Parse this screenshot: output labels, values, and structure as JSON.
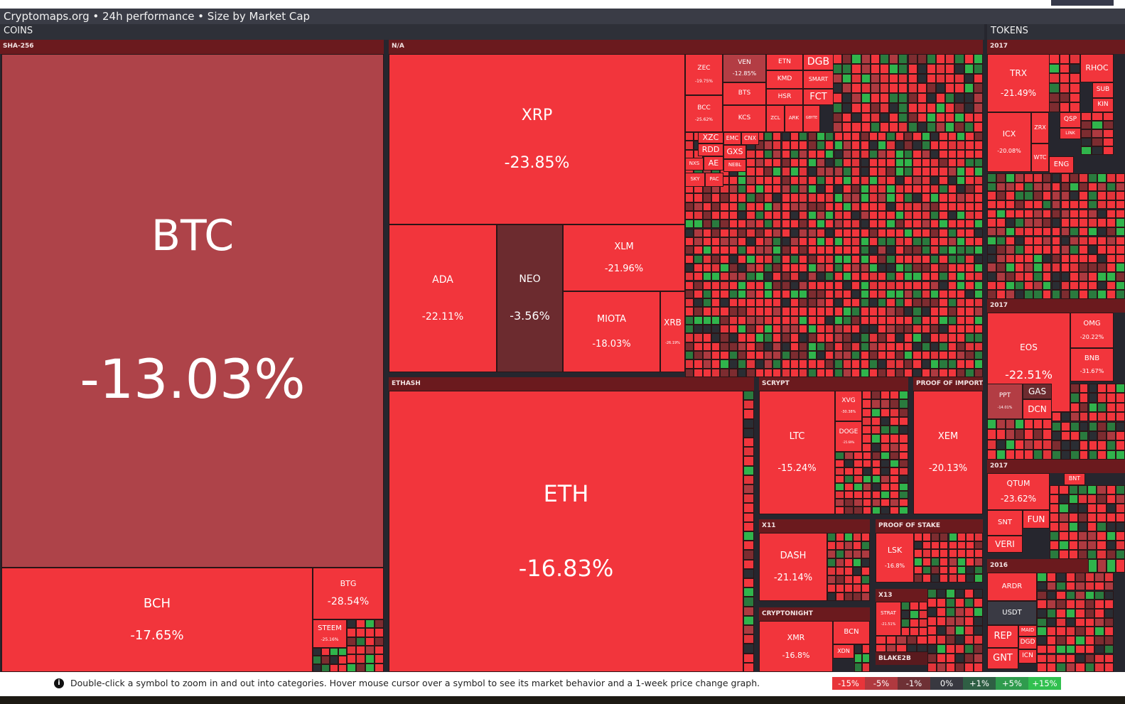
{
  "app": {
    "title": "Cryptomaps.org • 24h performance • Size by Market Cap"
  },
  "sections": {
    "coins": "COINS",
    "tokens": "TOKENS"
  },
  "groups": {
    "sha256": "SHA-256",
    "na": "N/A",
    "ethash": "ETHASH",
    "scrypt": "SCRYPT",
    "proof_importance": "PROOF OF IMPORTANCE",
    "x11": "X11",
    "proof_stake": "PROOF OF STAKE",
    "x13": "X13",
    "cryptonight": "CRYPTONIGHT",
    "blake2b": "BLAKE2B",
    "tok2017a": "2017",
    "tok2017b": "2017",
    "tok2017c": "2017",
    "tok2016": "2016"
  },
  "tiles": [
    {
      "sym": "BTC",
      "pct": "-13.03%",
      "color": "#ae4349"
    },
    {
      "sym": "BCH",
      "pct": "-17.65%",
      "color": "#f2353c"
    },
    {
      "sym": "BTG",
      "pct": "-28.54%",
      "color": "#f2353c"
    },
    {
      "sym": "STEEM",
      "pct": "-25.16%",
      "color": "#f2353c"
    },
    {
      "sym": "XRP",
      "pct": "-23.85%",
      "color": "#f2353c"
    },
    {
      "sym": "ADA",
      "pct": "-22.11%",
      "color": "#f2353c"
    },
    {
      "sym": "NEO",
      "pct": "-3.56%",
      "color": "#6c2b2f"
    },
    {
      "sym": "XLM",
      "pct": "-21.96%",
      "color": "#f2353c"
    },
    {
      "sym": "MIOTA",
      "pct": "-18.03%",
      "color": "#f2353c"
    },
    {
      "sym": "XRB",
      "pct": "-26.19%",
      "color": "#f2353c"
    },
    {
      "sym": "ZEC",
      "pct": "-19.75%",
      "color": "#f2353c"
    },
    {
      "sym": "VEN",
      "pct": "-12.85%",
      "color": "#b33d44"
    },
    {
      "sym": "ETN",
      "pct": "",
      "color": "#f2353c"
    },
    {
      "sym": "DGB",
      "pct": "",
      "color": "#f2353c"
    },
    {
      "sym": "KMD",
      "pct": "",
      "color": "#f2353c"
    },
    {
      "sym": "SMART",
      "pct": "",
      "color": "#f2353c"
    },
    {
      "sym": "BTS",
      "pct": "",
      "color": "#f2353c"
    },
    {
      "sym": "HSR",
      "pct": "",
      "color": "#f2353c"
    },
    {
      "sym": "FCT",
      "pct": "",
      "color": "#f2353c"
    },
    {
      "sym": "BCC",
      "pct": "-25.62%",
      "color": "#f2353c"
    },
    {
      "sym": "KCS",
      "pct": "",
      "color": "#f2353c"
    },
    {
      "sym": "ZCL",
      "pct": "",
      "color": "#f2353c"
    },
    {
      "sym": "ARK",
      "pct": "",
      "color": "#f2353c"
    },
    {
      "sym": "GBYTE",
      "pct": "",
      "color": "#f2353c"
    },
    {
      "sym": "XZC",
      "pct": "",
      "color": "#f2353c"
    },
    {
      "sym": "EMC",
      "pct": "",
      "color": "#f2353c"
    },
    {
      "sym": "CNX",
      "pct": "",
      "color": "#f2353c"
    },
    {
      "sym": "RDD",
      "pct": "",
      "color": "#f2353c"
    },
    {
      "sym": "GXS",
      "pct": "",
      "color": "#f2353c"
    },
    {
      "sym": "NXS",
      "pct": "",
      "color": "#f2353c"
    },
    {
      "sym": "AE",
      "pct": "",
      "color": "#f2353c"
    },
    {
      "sym": "NEBL",
      "pct": "",
      "color": "#f2353c"
    },
    {
      "sym": "SKY",
      "pct": "",
      "color": "#f2353c"
    },
    {
      "sym": "PAC",
      "pct": "",
      "color": "#f2353c"
    },
    {
      "sym": "ETH",
      "pct": "-16.83%",
      "color": "#f2353c"
    },
    {
      "sym": "LTC",
      "pct": "-15.24%",
      "color": "#f2353c"
    },
    {
      "sym": "XVG",
      "pct": "-30.38%",
      "color": "#f2353c"
    },
    {
      "sym": "DOGE",
      "pct": "-25.69%",
      "color": "#f2353c"
    },
    {
      "sym": "XEM",
      "pct": "-20.13%",
      "color": "#f2353c"
    },
    {
      "sym": "DASH",
      "pct": "-21.14%",
      "color": "#f2353c"
    },
    {
      "sym": "LSK",
      "pct": "-16.8%",
      "color": "#f2353c"
    },
    {
      "sym": "STRAT",
      "pct": "-21.51%",
      "color": "#f2353c"
    },
    {
      "sym": "XMR",
      "pct": "-16.8%",
      "color": "#f2353c"
    },
    {
      "sym": "BCN",
      "pct": "",
      "color": "#f2353c"
    },
    {
      "sym": "XDN",
      "pct": "",
      "color": "#f2353c"
    },
    {
      "sym": "TRX",
      "pct": "-21.49%",
      "color": "#f2353c"
    },
    {
      "sym": "RHOC",
      "pct": "",
      "color": "#f2353c"
    },
    {
      "sym": "SUB",
      "pct": "",
      "color": "#f2353c"
    },
    {
      "sym": "KIN",
      "pct": "",
      "color": "#f2353c"
    },
    {
      "sym": "ICX",
      "pct": "-20.08%",
      "color": "#f2353c"
    },
    {
      "sym": "ZRX",
      "pct": "",
      "color": "#f2353c"
    },
    {
      "sym": "QSP",
      "pct": "",
      "color": "#f2353c"
    },
    {
      "sym": "LINK",
      "pct": "",
      "color": "#f2353c"
    },
    {
      "sym": "WTC",
      "pct": "",
      "color": "#f2353c"
    },
    {
      "sym": "ENG",
      "pct": "",
      "color": "#f2353c"
    },
    {
      "sym": "EOS",
      "pct": "-22.51%",
      "color": "#f2353c"
    },
    {
      "sym": "OMG",
      "pct": "-20.22%",
      "color": "#f2353c"
    },
    {
      "sym": "BNB",
      "pct": "-31.67%",
      "color": "#f2353c"
    },
    {
      "sym": "PPT",
      "pct": "-14.01%",
      "color": "#b33d44"
    },
    {
      "sym": "GAS",
      "pct": "",
      "color": "#6c2b2f"
    },
    {
      "sym": "DCN",
      "pct": "",
      "color": "#f2353c"
    },
    {
      "sym": "QTUM",
      "pct": "-23.62%",
      "color": "#f2353c"
    },
    {
      "sym": "BNT",
      "pct": "",
      "color": "#f2353c"
    },
    {
      "sym": "SNT",
      "pct": "",
      "color": "#f2353c"
    },
    {
      "sym": "FUN",
      "pct": "",
      "color": "#f2353c"
    },
    {
      "sym": "VERI",
      "pct": "",
      "color": "#f2353c"
    },
    {
      "sym": "ARDR",
      "pct": "",
      "color": "#f2353c"
    },
    {
      "sym": "USDT",
      "pct": "",
      "color": "#3a3a44"
    },
    {
      "sym": "REP",
      "pct": "",
      "color": "#f2353c"
    },
    {
      "sym": "MAID",
      "pct": "",
      "color": "#f2353c"
    },
    {
      "sym": "DGD",
      "pct": "",
      "color": "#f2353c"
    },
    {
      "sym": "GNT",
      "pct": "",
      "color": "#f2353c"
    },
    {
      "sym": "ICN",
      "pct": "",
      "color": "#f2353c"
    }
  ],
  "footer": {
    "info_icon": "i",
    "hint": "Double-click a symbol to zoom in and out into categories. Hover mouse cursor over a symbol to see its market behavior and a 1-week price change graph."
  },
  "legend": [
    {
      "label": "-15%",
      "color": "#e8353a"
    },
    {
      "label": "-5%",
      "color": "#b0393f"
    },
    {
      "label": "-1%",
      "color": "#6e3035"
    },
    {
      "label": "0%",
      "color": "#383840"
    },
    {
      "label": "+1%",
      "color": "#2f5f44"
    },
    {
      "label": "+5%",
      "color": "#2f9b4d"
    },
    {
      "label": "+15%",
      "color": "#31c04f"
    }
  ],
  "mosaic_palette": [
    "#f2353c",
    "#e2343a",
    "#f2353c",
    "#ad3a40",
    "#7d2c30",
    "#f2353c",
    "#2a2d33",
    "#30b44c",
    "#f2353c",
    "#2a7a3e"
  ]
}
